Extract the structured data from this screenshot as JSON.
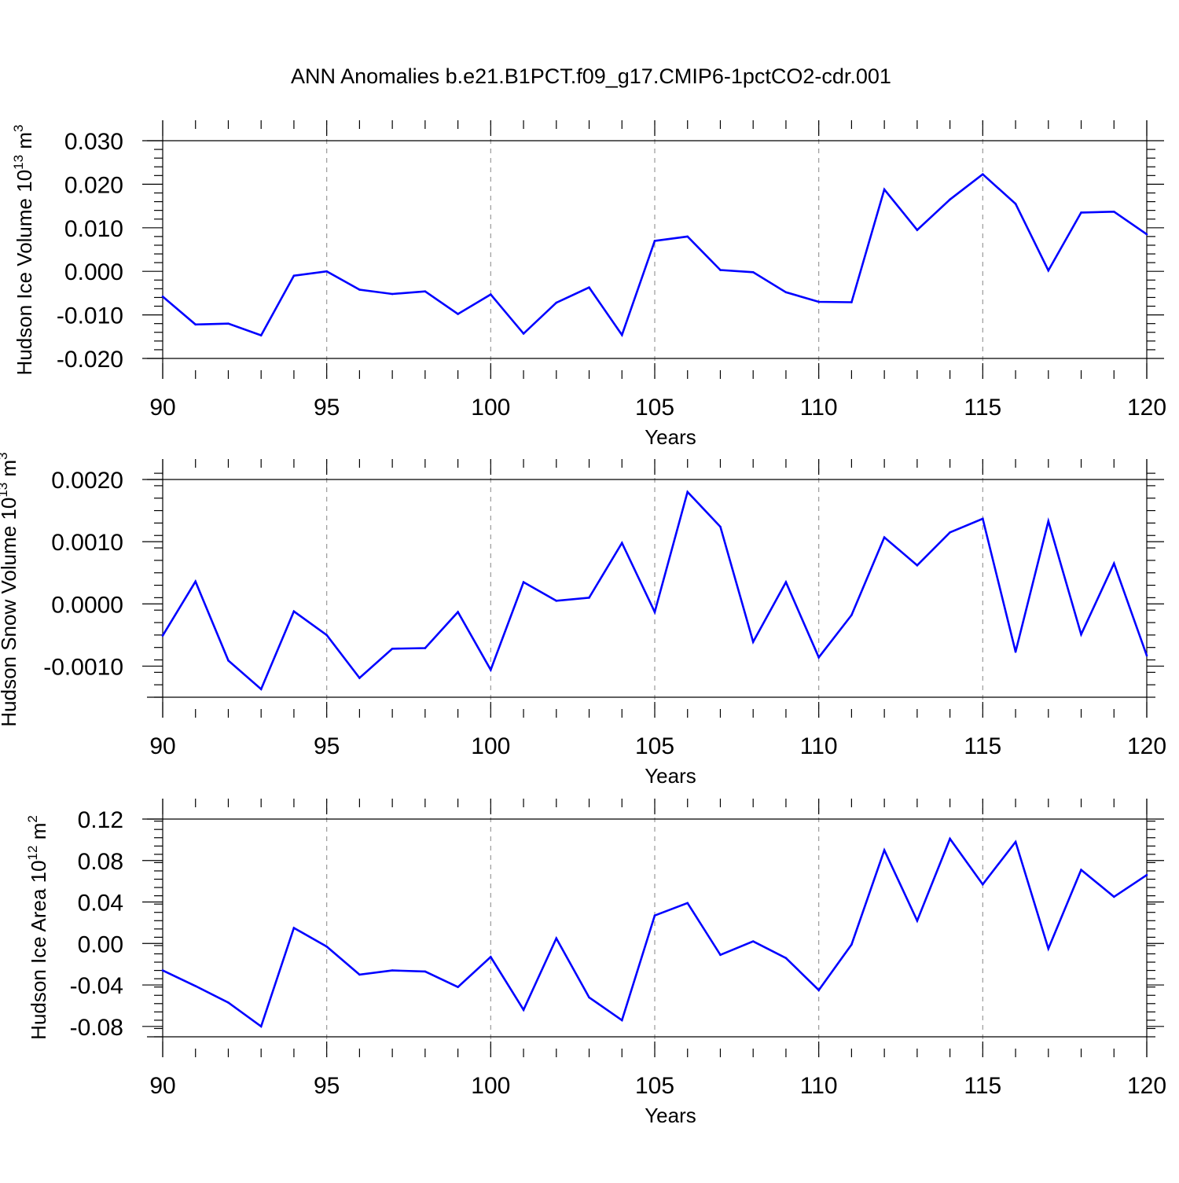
{
  "title": "ANN Anomalies b.e21.B1PCT.f09_g17.CMIP6-1pctCO2-cdr.001",
  "colors": {
    "line": "#0000ff",
    "frame": "#000000",
    "grid": "#9a9a9a"
  },
  "chart_data": [
    {
      "type": "line",
      "ylabel": {
        "main": "Hudson Ice Volume 10",
        "exp": "13",
        "unit": " m",
        "unit_exp": "3"
      },
      "xlabel": "Years",
      "xlim": [
        90,
        120
      ],
      "ylim": [
        -0.02,
        0.03
      ],
      "xticks": [
        90,
        95,
        100,
        105,
        110,
        115,
        120
      ],
      "xtick_labels": [
        "90",
        "95",
        "100",
        "105",
        "110",
        "115",
        "120"
      ],
      "yticks": [
        -0.02,
        -0.01,
        0.0,
        0.01,
        0.02,
        0.03
      ],
      "ytick_labels": [
        "-0.020",
        "-0.010",
        "0.000",
        "0.010",
        "0.020",
        "0.030"
      ],
      "x": [
        90,
        91,
        92,
        93,
        94,
        95,
        96,
        97,
        98,
        99,
        100,
        101,
        102,
        103,
        104,
        105,
        106,
        107,
        108,
        109,
        110,
        111,
        112,
        113,
        114,
        115,
        116,
        117,
        118,
        119,
        120
      ],
      "values": [
        -0.0058,
        -0.0122,
        -0.012,
        -0.0147,
        -0.001,
        0.0,
        -0.0042,
        -0.0052,
        -0.0046,
        -0.0098,
        -0.0053,
        -0.0143,
        -0.0072,
        -0.0037,
        -0.0146,
        0.007,
        0.008,
        0.0003,
        -0.0002,
        -0.0048,
        -0.007,
        -0.0071,
        0.0188,
        0.0095,
        0.0165,
        0.0223,
        0.0155,
        0.0002,
        0.0135,
        0.0137,
        0.0085
      ]
    },
    {
      "type": "line",
      "ylabel": {
        "main": "Hudson Snow Volume 10",
        "exp": "13",
        "unit": " m",
        "unit_exp": "3"
      },
      "xlabel": "Years",
      "xlim": [
        90,
        120
      ],
      "ylim": [
        -0.0015,
        0.002
      ],
      "xticks": [
        90,
        95,
        100,
        105,
        110,
        115,
        120
      ],
      "xtick_labels": [
        "90",
        "95",
        "100",
        "105",
        "110",
        "115",
        "120"
      ],
      "yticks": [
        -0.001,
        0.0,
        0.001,
        0.002
      ],
      "ytick_labels": [
        "-0.0010",
        "0.0000",
        "0.0010",
        "0.0020"
      ],
      "x": [
        90,
        91,
        92,
        93,
        94,
        95,
        96,
        97,
        98,
        99,
        100,
        101,
        102,
        103,
        104,
        105,
        106,
        107,
        108,
        109,
        110,
        111,
        112,
        113,
        114,
        115,
        116,
        117,
        118,
        119,
        120
      ],
      "values": [
        -0.00051,
        0.00036,
        -0.00091,
        -0.00137,
        -0.00012,
        -0.0005,
        -0.00119,
        -0.00072,
        -0.00071,
        -0.00013,
        -0.00106,
        0.00035,
        5e-05,
        0.0001,
        0.00098,
        -0.00013,
        0.0018,
        0.00124,
        -0.00061,
        0.00035,
        -0.00086,
        -0.00018,
        0.00107,
        0.00062,
        0.00115,
        0.00137,
        -0.00077,
        0.00133,
        -0.00049,
        0.00065,
        -0.00083
      ]
    },
    {
      "type": "line",
      "ylabel": {
        "main": "Hudson Ice Area 10",
        "exp": "12",
        "unit": " m",
        "unit_exp": "2"
      },
      "xlabel": "Years",
      "xlim": [
        90,
        120
      ],
      "ylim": [
        -0.09,
        0.12
      ],
      "xticks": [
        90,
        95,
        100,
        105,
        110,
        115,
        120
      ],
      "xtick_labels": [
        "90",
        "95",
        "100",
        "105",
        "110",
        "115",
        "120"
      ],
      "yticks": [
        -0.08,
        -0.04,
        0.0,
        0.04,
        0.08,
        0.12
      ],
      "ytick_labels": [
        "-0.08",
        "-0.04",
        "0.00",
        "0.04",
        "0.08",
        "0.12"
      ],
      "x": [
        90,
        91,
        92,
        93,
        94,
        95,
        96,
        97,
        98,
        99,
        100,
        101,
        102,
        103,
        104,
        105,
        106,
        107,
        108,
        109,
        110,
        111,
        112,
        113,
        114,
        115,
        116,
        117,
        118,
        119,
        120
      ],
      "values": [
        -0.026,
        -0.041,
        -0.057,
        -0.08,
        0.015,
        -0.003,
        -0.03,
        -0.026,
        -0.027,
        -0.042,
        -0.013,
        -0.064,
        0.005,
        -0.052,
        -0.074,
        0.027,
        0.039,
        -0.011,
        0.002,
        -0.014,
        -0.045,
        -0.001,
        0.09,
        0.022,
        0.101,
        0.057,
        0.098,
        -0.005,
        0.071,
        0.045,
        0.066
      ]
    }
  ]
}
